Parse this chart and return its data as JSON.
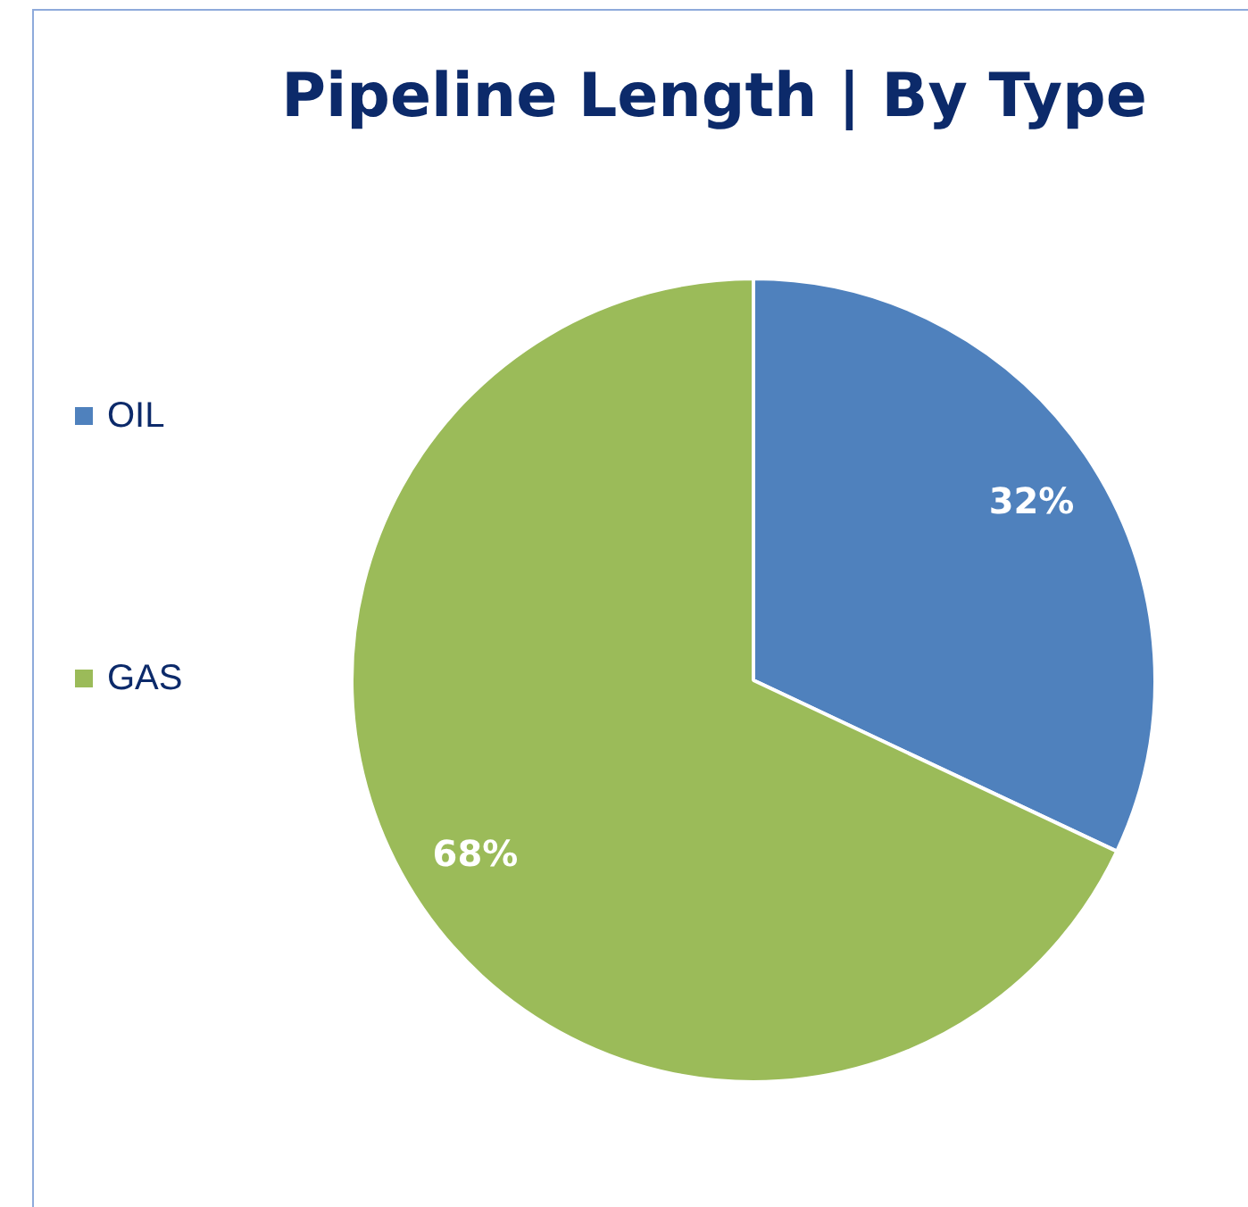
{
  "chart_data": {
    "type": "pie",
    "title": "Pipeline Length | By Type",
    "categories": [
      "OIL",
      "GAS"
    ],
    "values": [
      32,
      68
    ],
    "colors": [
      "#4f81bd",
      "#9bbb59"
    ],
    "value_labels": [
      "32%",
      "68%"
    ],
    "legend": "left"
  }
}
